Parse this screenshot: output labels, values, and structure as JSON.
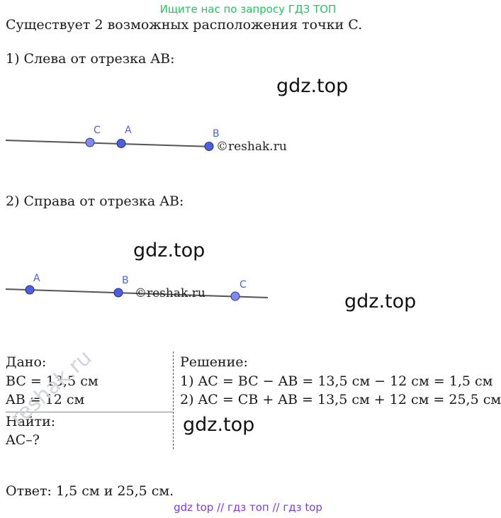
{
  "header": {
    "link_text": "Ищите нас по запросу ГДЗ ТОП"
  },
  "intro": "Существует 2 возможных расположения точки C.",
  "case1": {
    "title": "1) Слева от отрезка AB:",
    "points": [
      "C",
      "A",
      "B"
    ],
    "copyright": "©reshak.ru"
  },
  "case2": {
    "title": "2) Справа от отрезка AB:",
    "points": [
      "A",
      "B",
      "C"
    ],
    "copyright": "©reshak.ru"
  },
  "watermarks": [
    "gdz.top",
    "gdz.top",
    "gdz.top",
    "gdz.top"
  ],
  "given": {
    "label": "Дано:",
    "lines": [
      "BC = 13,5 см",
      "AB = 12 см"
    ],
    "find_label": "Найти:",
    "find_value": "AC–?"
  },
  "solution": {
    "label": "Решение:",
    "lines": [
      "1) AC = BC − AB = 13,5 см − 12 см = 1,5 см",
      "2) AC = CB + AB = 13,5 см + 12 см = 25,5 см"
    ]
  },
  "answer": "Ответ: 1,5 см и 25,5 см.",
  "seal_text": "reshak.ru",
  "footer": {
    "link_text": "gdz top  //  гдз топ  //  гдз top"
  },
  "colors": {
    "point_fill": "#6b7bf0",
    "point_stroke": "#1e2a8a",
    "header_green": "#22c55e",
    "footer_purple": "#7c3aed"
  }
}
